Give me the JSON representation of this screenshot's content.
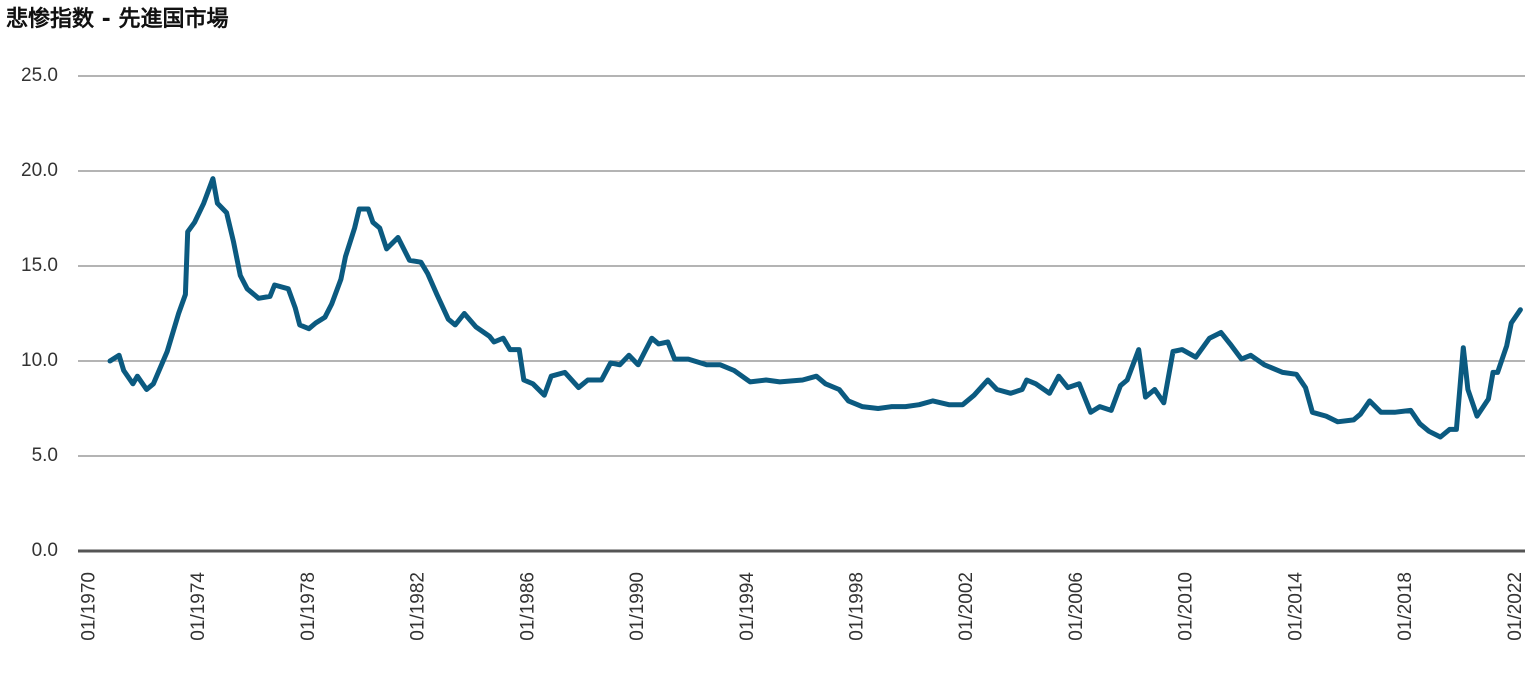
{
  "chart_data": {
    "type": "line",
    "title": "悲惨指数 - 先進国市場",
    "x": [
      "10/1970",
      "02/1971",
      "04/1971",
      "08/1971",
      "10/1971",
      "02/1972",
      "05/1972",
      "11/1972",
      "04/1973",
      "07/1973",
      "08/1973",
      "11/1973",
      "03/1974",
      "07/1974",
      "09/1974",
      "01/1975",
      "04/1975",
      "07/1975",
      "10/1975",
      "03/1976",
      "08/1976",
      "10/1976",
      "04/1977",
      "07/1977",
      "09/1977",
      "01/1978",
      "04/1978",
      "08/1978",
      "11/1978",
      "03/1979",
      "05/1979",
      "09/1979",
      "11/1979",
      "03/1980",
      "05/1980",
      "08/1980",
      "11/1980",
      "04/1981",
      "09/1981",
      "02/1982",
      "05/1982",
      "09/1982",
      "02/1983",
      "05/1983",
      "09/1983",
      "02/1984",
      "08/1984",
      "10/1984",
      "02/1985",
      "05/1985",
      "09/1985",
      "11/1985",
      "03/1986",
      "08/1986",
      "11/1986",
      "05/1987",
      "11/1987",
      "03/1988",
      "09/1988",
      "01/1989",
      "05/1989",
      "09/1989",
      "01/1990",
      "04/1990",
      "07/1990",
      "10/1990",
      "02/1991",
      "05/1991",
      "11/1991",
      "07/1992",
      "01/1993",
      "07/1993",
      "02/1994",
      "09/1994",
      "03/1995",
      "01/1996",
      "07/1996",
      "11/1996",
      "05/1997",
      "09/1997",
      "03/1998",
      "10/1998",
      "04/1999",
      "10/1999",
      "04/2000",
      "10/2000",
      "05/2001",
      "11/2001",
      "04/2002",
      "10/2002",
      "02/2003",
      "08/2003",
      "01/2004",
      "03/2004",
      "07/2004",
      "01/2005",
      "05/2005",
      "09/2005",
      "02/2006",
      "07/2006",
      "11/2006",
      "04/2007",
      "08/2007",
      "11/2007",
      "04/2008",
      "07/2008",
      "11/2008",
      "03/2009",
      "07/2009",
      "11/2009",
      "05/2010",
      "11/2010",
      "04/2011",
      "08/2011",
      "01/2012",
      "05/2012",
      "11/2012",
      "07/2013",
      "01/2014",
      "05/2014",
      "08/2014",
      "02/2015",
      "07/2015",
      "02/2016",
      "05/2016",
      "09/2016",
      "02/2017",
      "08/2017",
      "03/2018",
      "07/2018",
      "11/2018",
      "04/2019",
      "08/2019",
      "11/2019",
      "02/2020",
      "04/2020",
      "08/2020",
      "01/2021",
      "03/2021",
      "05/2021",
      "09/2021",
      "11/2021",
      "03/2022"
    ],
    "series": [
      {
        "color": "#0b5a80",
        "values": [
          10.0,
          10.3,
          9.5,
          8.8,
          9.2,
          8.5,
          8.8,
          10.5,
          12.5,
          13.5,
          16.8,
          17.3,
          18.3,
          19.6,
          18.3,
          17.8,
          16.3,
          14.5,
          13.8,
          13.3,
          13.4,
          14.0,
          13.8,
          12.8,
          11.9,
          11.7,
          12.0,
          12.3,
          13.0,
          14.3,
          15.5,
          17.0,
          18.0,
          18.0,
          17.3,
          17.0,
          15.9,
          16.5,
          15.3,
          15.2,
          14.6,
          13.5,
          12.2,
          11.9,
          12.5,
          11.8,
          11.3,
          11.0,
          11.2,
          10.6,
          10.6,
          9.0,
          8.8,
          8.2,
          9.2,
          9.4,
          8.6,
          9.0,
          9.0,
          9.9,
          9.8,
          10.3,
          9.8,
          10.5,
          11.2,
          10.9,
          11.0,
          10.1,
          10.1,
          9.8,
          9.8,
          9.5,
          8.9,
          9.0,
          8.9,
          9.0,
          9.2,
          8.8,
          8.5,
          7.9,
          7.6,
          7.5,
          7.6,
          7.6,
          7.7,
          7.9,
          7.7,
          7.7,
          8.2,
          9.0,
          8.5,
          8.3,
          8.5,
          9.0,
          8.8,
          8.3,
          9.2,
          8.6,
          8.8,
          7.3,
          7.6,
          7.4,
          8.7,
          9.0,
          10.6,
          8.1,
          8.5,
          7.8,
          10.5,
          10.6,
          10.2,
          11.2,
          11.5,
          10.9,
          10.1,
          10.3,
          9.8,
          9.4,
          9.3,
          8.6,
          7.3,
          7.1,
          6.8,
          6.9,
          7.2,
          7.9,
          7.3,
          7.3,
          7.4,
          6.7,
          6.3,
          6.0,
          6.4,
          6.4,
          10.7,
          8.5,
          7.1,
          8.0,
          9.4,
          9.4,
          10.8,
          12.0,
          12.7
        ]
      }
    ],
    "xlim": [
      "08/1969",
      "05/2022"
    ],
    "xticks": [
      "01/1970",
      "01/1974",
      "01/1978",
      "01/1982",
      "01/1986",
      "01/1990",
      "01/1994",
      "01/1998",
      "01/2002",
      "01/2006",
      "01/2010",
      "01/2014",
      "01/2018",
      "01/2022"
    ],
    "ylim": [
      0,
      25
    ],
    "yticks": [
      {
        "value": 0,
        "label": "0.0"
      },
      {
        "value": 5,
        "label": "5.0"
      },
      {
        "value": 10,
        "label": "10.0"
      },
      {
        "value": 15,
        "label": "15.0"
      },
      {
        "value": 20,
        "label": "20.0"
      },
      {
        "value": 25,
        "label": "25.0"
      }
    ],
    "grid": true
  }
}
